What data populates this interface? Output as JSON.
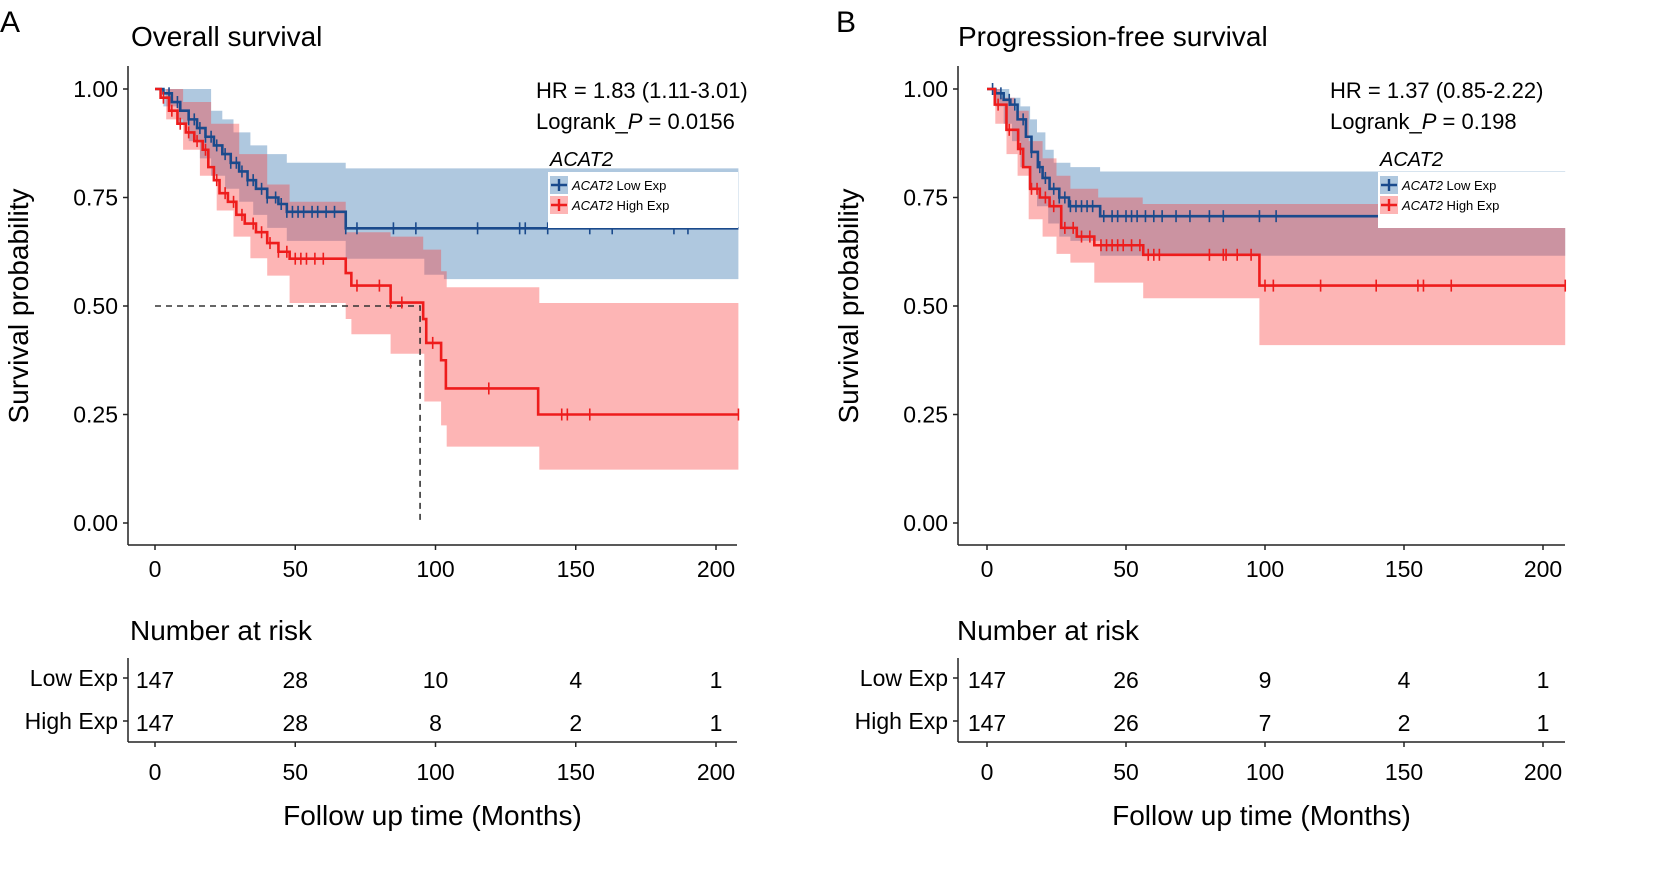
{
  "chart_data": [
    {
      "type": "line",
      "panel_label": "A",
      "title": "Overall survival",
      "ylabel": "Survival probability",
      "xlabel": "Follow up time (Months)",
      "ylim": [
        0,
        1
      ],
      "xlim": [
        0,
        208
      ],
      "yticks": [
        "0.00",
        "0.25",
        "0.50",
        "0.75",
        "1.00"
      ],
      "xticks": [
        "0",
        "50",
        "100",
        "150",
        "200"
      ],
      "grid": false,
      "stats": {
        "hr": "HR = 1.83 (1.11-3.01)",
        "logrank_prefix": "Logrank_",
        "logrank_p": "P",
        "logrank_value": " = 0.0156"
      },
      "legend": {
        "title": "ACAT2",
        "position": "top-right",
        "gene": "ACAT2",
        "low": " Low Exp",
        "high": " High Exp"
      },
      "median_line": {
        "survival": 0.5,
        "time": 94.5
      },
      "series": [
        {
          "name": "ACAT2 Low Exp",
          "color": "#1a4a8c",
          "ci_color": "#2e6eaa",
          "steps": [
            [
              0,
              1
            ],
            [
              3,
              0.99
            ],
            [
              6,
              0.97
            ],
            [
              9,
              0.95
            ],
            [
              12,
              0.93
            ],
            [
              15,
              0.91
            ],
            [
              18,
              0.89
            ],
            [
              21,
              0.87
            ],
            [
              24,
              0.85
            ],
            [
              27,
              0.83
            ],
            [
              30,
              0.81
            ],
            [
              33,
              0.79
            ],
            [
              36,
              0.77
            ],
            [
              40,
              0.75
            ],
            [
              44,
              0.735
            ],
            [
              47,
              0.717
            ],
            [
              68,
              0.679
            ]
          ],
          "ci_upper": [
            [
              0,
              1
            ],
            [
              20,
              0.95
            ],
            [
              24,
              0.93
            ],
            [
              28,
              0.9
            ],
            [
              34,
              0.87
            ],
            [
              40,
              0.85
            ],
            [
              47,
              0.83
            ],
            [
              68,
              0.817
            ]
          ],
          "ci_lower": [
            [
              0,
              1
            ],
            [
              3,
              0.96
            ],
            [
              8,
              0.92
            ],
            [
              12,
              0.88
            ],
            [
              16,
              0.84
            ],
            [
              20,
              0.8
            ],
            [
              25,
              0.77
            ],
            [
              30,
              0.74
            ],
            [
              35,
              0.71
            ],
            [
              40,
              0.68
            ],
            [
              47,
              0.65
            ],
            [
              68,
              0.609
            ],
            [
              96,
              0.572
            ],
            [
              103,
              0.562
            ]
          ],
          "censored": [
            5,
            8,
            12,
            14,
            16,
            18,
            20,
            22,
            25,
            27,
            29,
            31,
            33,
            35,
            38,
            40,
            43,
            45,
            47,
            49,
            51,
            53,
            56,
            58,
            61,
            64,
            68,
            72,
            85,
            93,
            115,
            130,
            132,
            140,
            155,
            163,
            185,
            190
          ]
        },
        {
          "name": "ACAT2 High Exp",
          "color": "#ee1c1c",
          "ci_color": "#fa3c3c",
          "steps": [
            [
              0,
              1
            ],
            [
              2,
              0.98
            ],
            [
              5,
              0.95
            ],
            [
              8,
              0.92
            ],
            [
              11,
              0.9
            ],
            [
              14,
              0.88
            ],
            [
              17,
              0.86
            ],
            [
              19,
              0.82
            ],
            [
              21,
              0.79
            ],
            [
              23,
              0.76
            ],
            [
              26,
              0.74
            ],
            [
              29,
              0.71
            ],
            [
              32,
              0.69
            ],
            [
              36,
              0.67
            ],
            [
              40,
              0.645
            ],
            [
              44,
              0.625
            ],
            [
              48,
              0.609
            ],
            [
              68,
              0.576
            ],
            [
              70,
              0.547
            ],
            [
              84,
              0.508
            ],
            [
              95.6,
              0.47
            ],
            [
              96.7,
              0.415
            ],
            [
              102,
              0.375
            ],
            [
              103.7,
              0.31
            ],
            [
              136.6,
              0.25
            ]
          ],
          "ci_upper": [
            [
              0,
              1
            ],
            [
              10,
              0.97
            ],
            [
              20,
              0.92
            ],
            [
              30,
              0.85
            ],
            [
              40,
              0.78
            ],
            [
              48,
              0.74
            ],
            [
              68,
              0.67
            ],
            [
              84,
              0.66
            ],
            [
              95.6,
              0.63
            ],
            [
              102,
              0.58
            ],
            [
              104,
              0.543
            ],
            [
              137,
              0.507
            ]
          ],
          "ci_lower": [
            [
              0,
              1
            ],
            [
              4,
              0.93
            ],
            [
              10,
              0.86
            ],
            [
              16,
              0.8
            ],
            [
              22,
              0.72
            ],
            [
              28,
              0.66
            ],
            [
              34,
              0.61
            ],
            [
              40,
              0.57
            ],
            [
              48,
              0.507
            ],
            [
              68,
              0.47
            ],
            [
              70,
              0.435
            ],
            [
              84,
              0.39
            ],
            [
              96,
              0.28
            ],
            [
              102,
              0.225
            ],
            [
              104,
              0.176
            ],
            [
              137,
              0.123
            ]
          ],
          "censored": [
            3,
            6,
            9,
            12,
            15,
            18,
            22,
            25,
            28,
            31,
            35,
            38,
            41,
            44,
            47,
            50,
            52,
            54,
            57,
            60,
            72,
            80,
            84,
            88,
            99,
            119,
            145,
            147,
            155,
            208
          ]
        }
      ],
      "risk_table": {
        "title": "Number at risk",
        "rows": [
          {
            "label": "Low Exp",
            "values": [
              "147",
              "28",
              "10",
              "4",
              "1"
            ]
          },
          {
            "label": "High Exp",
            "values": [
              "147",
              "28",
              "8",
              "2",
              "1"
            ]
          }
        ]
      }
    },
    {
      "type": "line",
      "panel_label": "B",
      "title": "Progression-free survival",
      "ylabel": "Survival probability",
      "xlabel": "Follow up time (Months)",
      "ylim": [
        0,
        1
      ],
      "xlim": [
        0,
        208
      ],
      "yticks": [
        "0.00",
        "0.25",
        "0.50",
        "0.75",
        "1.00"
      ],
      "xticks": [
        "0",
        "50",
        "100",
        "150",
        "200"
      ],
      "grid": false,
      "stats": {
        "hr": "HR = 1.37 (0.85-2.22)",
        "logrank_prefix": "Logrank_",
        "logrank_p": "P",
        "logrank_value": " = 0.198"
      },
      "legend": {
        "title": "ACAT2",
        "position": "top-right",
        "gene": "ACAT2",
        "low": " Low Exp",
        "high": " High Exp"
      },
      "series": [
        {
          "name": "ACAT2 Low Exp",
          "color": "#1a4a8c",
          "ci_color": "#2e6eaa",
          "steps": [
            [
              0,
              1
            ],
            [
              3,
              0.99
            ],
            [
              6,
              0.975
            ],
            [
              8.4,
              0.964
            ],
            [
              11,
              0.93
            ],
            [
              14,
              0.89
            ],
            [
              16,
              0.855
            ],
            [
              18.3,
              0.82
            ],
            [
              20,
              0.795
            ],
            [
              22.5,
              0.77
            ],
            [
              26,
              0.75
            ],
            [
              29.5,
              0.73
            ],
            [
              40.7,
              0.707
            ]
          ],
          "ci_upper": [
            [
              0,
              1
            ],
            [
              8,
              0.98
            ],
            [
              12,
              0.96
            ],
            [
              15.5,
              0.93
            ],
            [
              18,
              0.9
            ],
            [
              21,
              0.86
            ],
            [
              24,
              0.83
            ],
            [
              30,
              0.82
            ],
            [
              40.7,
              0.81
            ]
          ],
          "ci_lower": [
            [
              0,
              1
            ],
            [
              3,
              0.96
            ],
            [
              6,
              0.92
            ],
            [
              9,
              0.88
            ],
            [
              12,
              0.82
            ],
            [
              15,
              0.77
            ],
            [
              18,
              0.73
            ],
            [
              22,
              0.69
            ],
            [
              26,
              0.66
            ],
            [
              30,
              0.65
            ],
            [
              40.7,
              0.616
            ]
          ],
          "censored": [
            2,
            5,
            8,
            10,
            13,
            16,
            19,
            21,
            24,
            26,
            28,
            30,
            32,
            34,
            36,
            38,
            42,
            45,
            47,
            50,
            52,
            54,
            57,
            60,
            63,
            68,
            73,
            80,
            85,
            98,
            104,
            155,
            157,
            164,
            208
          ]
        },
        {
          "name": "ACAT2 High Exp",
          "color": "#ee1c1c",
          "ci_color": "#fa3c3c",
          "steps": [
            [
              0,
              1
            ],
            [
              2.8,
              0.964
            ],
            [
              7,
              0.906
            ],
            [
              11.2,
              0.862
            ],
            [
              13,
              0.82
            ],
            [
              15.5,
              0.77
            ],
            [
              19,
              0.75
            ],
            [
              22.5,
              0.73
            ],
            [
              26.7,
              0.68
            ],
            [
              32.3,
              0.66
            ],
            [
              38.6,
              0.64
            ],
            [
              56.2,
              0.618
            ],
            [
              98,
              0.547
            ]
          ],
          "ci_upper": [
            [
              0,
              1
            ],
            [
              5,
              0.98
            ],
            [
              10,
              0.95
            ],
            [
              15,
              0.88
            ],
            [
              20,
              0.84
            ],
            [
              25,
              0.8
            ],
            [
              30,
              0.77
            ],
            [
              40,
              0.75
            ],
            [
              56,
              0.735
            ]
          ],
          "ci_lower": [
            [
              0,
              1
            ],
            [
              3,
              0.92
            ],
            [
              7,
              0.85
            ],
            [
              11,
              0.8
            ],
            [
              15,
              0.7
            ],
            [
              20,
              0.66
            ],
            [
              25,
              0.62
            ],
            [
              30,
              0.6
            ],
            [
              38.6,
              0.554
            ],
            [
              56.2,
              0.518
            ],
            [
              98,
              0.41
            ]
          ],
          "censored": [
            4,
            8,
            12,
            16,
            18,
            21,
            24,
            28,
            31,
            34,
            37,
            41,
            43,
            45,
            47,
            49,
            52,
            55,
            58,
            60,
            62,
            80,
            85,
            86,
            90,
            95,
            100,
            103,
            120,
            140,
            155,
            157,
            167,
            208
          ]
        }
      ],
      "risk_table": {
        "title": "Number at risk",
        "rows": [
          {
            "label": "Low Exp",
            "values": [
              "147",
              "26",
              "9",
              "4",
              "1"
            ]
          },
          {
            "label": "High Exp",
            "values": [
              "147",
              "26",
              "7",
              "2",
              "1"
            ]
          }
        ]
      }
    }
  ]
}
